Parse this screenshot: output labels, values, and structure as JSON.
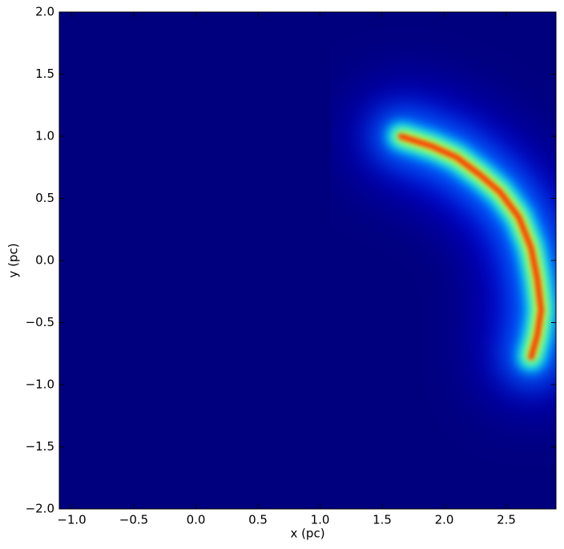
{
  "chart_data": {
    "type": "density",
    "xlabel": "x (pc)",
    "ylabel": "y (pc)",
    "xlim": [
      -1.1,
      2.9
    ],
    "ylim": [
      -2.0,
      2.0
    ],
    "xticks": [
      {
        "value": -1.0,
        "label": "−1.0"
      },
      {
        "value": -0.5,
        "label": "−0.5"
      },
      {
        "value": 0.0,
        "label": "0.0"
      },
      0.5,
      {
        "value": 1.0,
        "label": "1.0"
      },
      1.5,
      {
        "value": 2.0,
        "label": "2.0"
      },
      2.5
    ],
    "yticks": [
      {
        "value": -2.0,
        "label": "−2.0"
      },
      {
        "value": -1.5,
        "label": "−1.5"
      },
      {
        "value": -1.0,
        "label": "−1.0"
      },
      {
        "value": -0.5,
        "label": "−0.5"
      },
      {
        "value": 0.0,
        "label": "0.0"
      },
      0.5,
      {
        "value": 1.0,
        "label": "1.0"
      },
      1.5,
      {
        "value": 2.0,
        "label": "2.0"
      }
    ],
    "background": "#00007f",
    "colormap": [
      "#0000ff",
      "#0080ff",
      "#00ffff",
      "#ffff00",
      "#ff3000"
    ],
    "x": [
      1.65,
      1.9,
      2.1,
      2.3,
      2.45,
      2.6,
      2.7,
      2.75,
      2.78,
      2.75,
      2.7
    ],
    "y": [
      1.0,
      0.92,
      0.83,
      0.68,
      0.55,
      0.35,
      0.1,
      -0.15,
      -0.4,
      -0.6,
      -0.78
    ]
  }
}
